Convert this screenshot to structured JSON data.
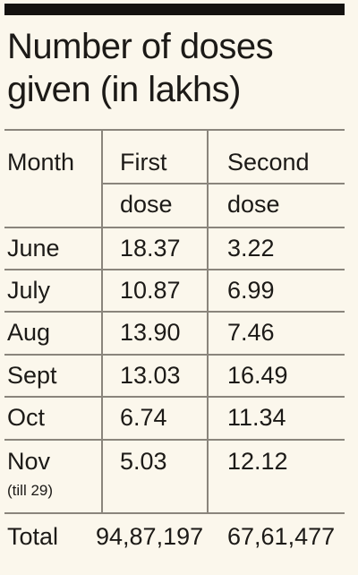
{
  "chart_data": {
    "type": "table",
    "title": "Number of doses given (in lakhs)",
    "columns": [
      "Month",
      "First dose",
      "Second dose"
    ],
    "header": {
      "col1": "Month",
      "col2_line1": "First",
      "col2_line2": "dose",
      "col3_line1": "Second",
      "col3_line2": "dose"
    },
    "rows": [
      {
        "month": "June",
        "first": "18.37",
        "second": "3.22"
      },
      {
        "month": "July",
        "first": "10.87",
        "second": "6.99"
      },
      {
        "month": "Aug",
        "first": "13.90",
        "second": "7.46"
      },
      {
        "month": "Sept",
        "first": "13.03",
        "second": "16.49"
      },
      {
        "month": "Oct",
        "first": "6.74",
        "second": "11.34"
      },
      {
        "month": "Nov",
        "note": "(till 29)",
        "first": "5.03",
        "second": "12.12"
      }
    ],
    "total": {
      "label": "Total",
      "first": "94,87,197",
      "second": "67,61,477"
    }
  }
}
